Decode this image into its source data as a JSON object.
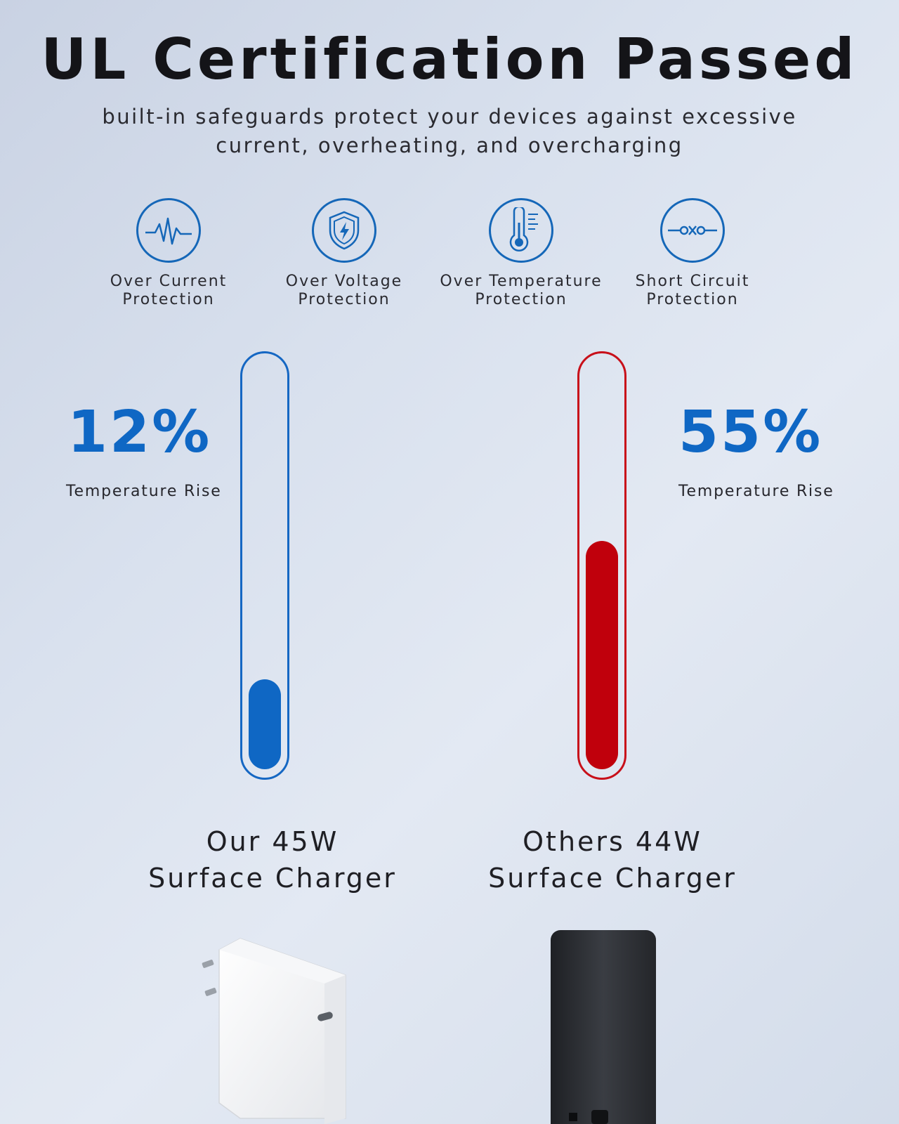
{
  "header": {
    "title": "UL Certification Passed",
    "subtitle_line1": "built-in safeguards protect your devices against excessive",
    "subtitle_line2": "current, overheating, and overcharging"
  },
  "features": [
    {
      "icon": "pulse-icon",
      "line1": "Over Current",
      "line2": "Protection"
    },
    {
      "icon": "shield-bolt-icon",
      "line1": "Over Voltage",
      "line2": "Protection"
    },
    {
      "icon": "thermometer-icon",
      "line1": "Over Temperature",
      "line2": "Protection"
    },
    {
      "icon": "short-circuit-icon",
      "line1": "Short Circuit",
      "line2": "Protection"
    }
  ],
  "comparison": {
    "ours": {
      "percent": "12%",
      "caption": "Temperature Rise",
      "name_line1": "Our 45W",
      "name_line2": "Surface Charger",
      "fill_fraction": 0.22,
      "color": "#0f67c4"
    },
    "others": {
      "percent": "55%",
      "caption": "Temperature Rise",
      "name_line1": "Others 44W",
      "name_line2": "Surface Charger",
      "fill_fraction": 0.56,
      "color": "#c0000c"
    }
  },
  "colors": {
    "accent_blue": "#1567b8",
    "accent_red": "#c0000c"
  }
}
